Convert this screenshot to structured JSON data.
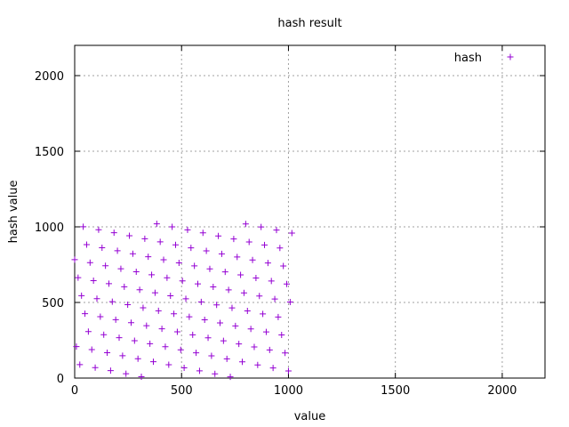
{
  "chart_data": {
    "type": "scatter",
    "title": "hash result",
    "xlabel": "value",
    "ylabel": "hash value",
    "xlim": [
      0,
      2200
    ],
    "ylim": [
      0,
      2200
    ],
    "xticks": [
      0,
      500,
      1000,
      1500,
      2000
    ],
    "yticks": [
      0,
      500,
      1000,
      1500,
      2000
    ],
    "grid": true,
    "legend": {
      "position": "top-right"
    },
    "colors": {
      "series": "#9400d3",
      "grid": "#a0a0a0",
      "axis": "#000000"
    },
    "series": [
      {
        "name": "hash",
        "marker": "plus",
        "generator": {
          "x_start": 0,
          "x_end": 1023,
          "x_step": 8,
          "formula": "y = (16777215 - 8191*x) mod 1031",
          "y_modulus": 1031
        }
      }
    ]
  }
}
